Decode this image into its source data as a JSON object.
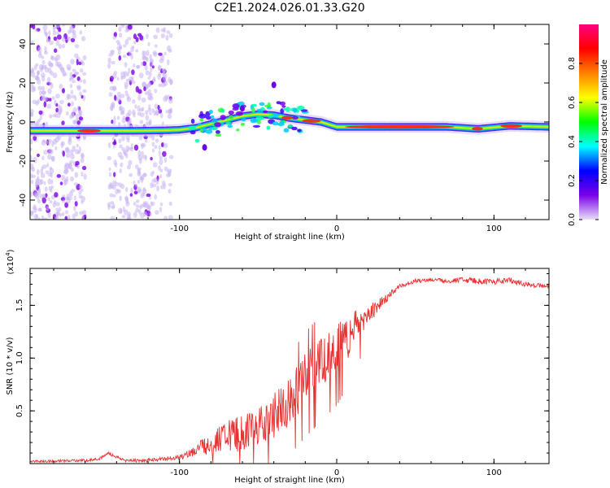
{
  "title": "C2E1.2024.026.01.33.G20",
  "chart_data": [
    {
      "type": "heatmap",
      "name": "spectrogram",
      "xlabel": "Height of straight line (km)",
      "ylabel": "Frequency (Hz)",
      "xlim": [
        -195,
        135
      ],
      "ylim": [
        -50,
        50
      ],
      "xticks": [
        -100,
        0,
        100
      ],
      "xtick_labels": [
        "-100",
        "0",
        "100"
      ],
      "yticks": [
        -40,
        -20,
        0,
        20,
        40
      ],
      "ytick_labels": [
        "-40",
        "-20",
        "0",
        "20",
        "40"
      ],
      "main_ridge": {
        "x": [
          -195,
          -160,
          -130,
          -110,
          -100,
          -90,
          -80,
          -70,
          -60,
          -50,
          -40,
          -30,
          -20,
          -10,
          0,
          10,
          40,
          70,
          90,
          110,
          135
        ],
        "y": [
          -4.5,
          -4.5,
          -4.5,
          -4.3,
          -4,
          -3,
          -1,
          1,
          3,
          4,
          3.5,
          2,
          1,
          0,
          -2.5,
          -2.5,
          -2.5,
          -2.5,
          -3.5,
          -2,
          -2.5
        ]
      },
      "noise_bands": [
        [
          -195,
          -160
        ],
        [
          -145,
          -105
        ]
      ],
      "colorbar": {
        "label": "Normalized spectral amplitude",
        "range": [
          0,
          1
        ],
        "ticks": [
          0,
          0.2,
          0.4,
          0.6,
          0.8
        ],
        "tick_labels": [
          "0.0",
          "0.2",
          "0.4",
          "0.6",
          "0.8"
        ],
        "colormap": [
          "#e8e0f8",
          "#7a00e8",
          "#0000ff",
          "#00ffff",
          "#00ff00",
          "#ffff00",
          "#ff8000",
          "#ff0000",
          "#ff0080"
        ]
      }
    },
    {
      "type": "line",
      "name": "snr",
      "xlabel": "Height of straight line (km)",
      "ylabel": "SNR (10 * v/v)",
      "y_multiplier": "(x10",
      "y_multiplier_exp": "4",
      "y_multiplier_close": ")",
      "xlim": [
        -195,
        135
      ],
      "ylim": [
        0,
        1.85
      ],
      "xticks": [
        -100,
        0,
        100
      ],
      "xtick_labels": [
        "-100",
        "0",
        "100"
      ],
      "yticks": [
        0.5,
        1.0,
        1.5
      ],
      "ytick_labels": [
        "0.5",
        "1.0",
        "1.5"
      ],
      "color": "#e83030",
      "envelope_x": [
        -195,
        -160,
        -150,
        -145,
        -140,
        -135,
        -120,
        -100,
        -90,
        -80,
        -70,
        -60,
        -50,
        -40,
        -30,
        -20,
        -10,
        0,
        10,
        20,
        30,
        40,
        50,
        60,
        70,
        80,
        90,
        100,
        110,
        120,
        135
      ],
      "envelope_y": [
        0.02,
        0.03,
        0.05,
        0.1,
        0.06,
        0.03,
        0.03,
        0.06,
        0.12,
        0.2,
        0.25,
        0.3,
        0.35,
        0.45,
        0.6,
        0.8,
        0.95,
        1.1,
        1.25,
        1.4,
        1.55,
        1.68,
        1.73,
        1.74,
        1.73,
        1.74,
        1.73,
        1.72,
        1.74,
        1.7,
        1.68
      ],
      "noise_amp_x": [
        -195,
        -100,
        -90,
        -80,
        -60,
        -40,
        -20,
        0,
        10,
        20,
        30,
        40,
        60,
        100,
        135
      ],
      "noise_amp_y": [
        0.01,
        0.02,
        0.06,
        0.12,
        0.18,
        0.22,
        0.25,
        0.25,
        0.2,
        0.1,
        0.05,
        0.02,
        0.02,
        0.03,
        0.02
      ]
    }
  ]
}
